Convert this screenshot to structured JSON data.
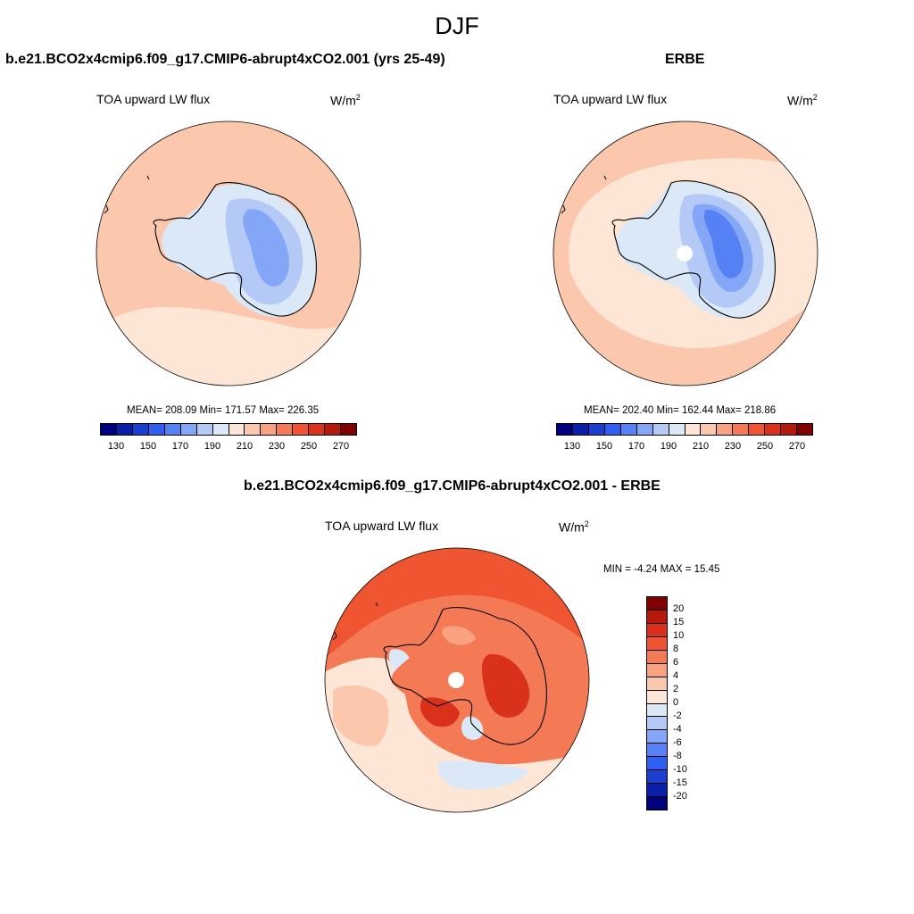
{
  "figure": {
    "season": "DJF"
  },
  "panels": [
    {
      "title": "b.e21.BCO2x4cmip6.f09_g17.CMIP6-abrupt4xCO2.001 (yrs 25-49)",
      "variable": "TOA upward LW flux",
      "units_base": "W/m",
      "units_exp": "2",
      "stats": "MEAN= 208.09  Min= 171.57  Max= 226.35"
    },
    {
      "title": "ERBE",
      "variable": "TOA upward LW flux",
      "units_base": "W/m",
      "units_exp": "2",
      "stats": "MEAN= 202.40  Min= 162.44  Max= 218.86"
    },
    {
      "title": "b.e21.BCO2x4cmip6.f09_g17.CMIP6-abrupt4xCO2.001 - ERBE",
      "variable": "TOA upward LW flux",
      "units_base": "W/m",
      "units_exp": "2",
      "stats": "MIN =  -4.24 MAX =  15.45"
    }
  ],
  "abs_colorbar": {
    "colors": [
      "#00007f",
      "#0a1fa8",
      "#1a3fd0",
      "#2f5ff0",
      "#5581f5",
      "#84a6f7",
      "#b4c9f6",
      "#dae8f7",
      "#fde6d6",
      "#fbc7ad",
      "#f8a282",
      "#f47a55",
      "#ee5530",
      "#d9311a",
      "#b5190c",
      "#7f0000"
    ],
    "tick_labels": [
      "130",
      "150",
      "170",
      "190",
      "210",
      "230",
      "250",
      "270"
    ]
  },
  "diff_colorbar": {
    "colors": [
      "#7f0000",
      "#b5190c",
      "#d9311a",
      "#ee5530",
      "#f47a55",
      "#f8a282",
      "#fbc7ad",
      "#fde6d6",
      "#dae8f7",
      "#b4c9f6",
      "#84a6f7",
      "#5581f5",
      "#2f5ff0",
      "#1a3fd0",
      "#0a1fa8",
      "#00007f"
    ],
    "tick_labels": [
      "20",
      "15",
      "10",
      "8",
      "6",
      "4",
      "2",
      "0",
      "-2",
      "-4",
      "-6",
      "-8",
      "-10",
      "-15",
      "-20"
    ]
  },
  "map_colors": {
    "ocean_high": "#fbc7ad",
    "ocean_mid": "#fde6d6",
    "ice_light": "#dae8f7",
    "ice_mid": "#b4c9f6",
    "ice_dark": "#84a6f7",
    "ice_core": "#5581f5",
    "diff_high": "#ee5530",
    "diff_mid": "#f47a55",
    "diff_low": "#f8a282",
    "diff_peak": "#d9311a",
    "coast": "#000000"
  }
}
